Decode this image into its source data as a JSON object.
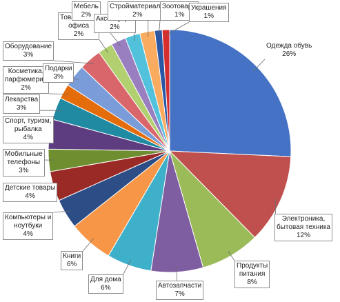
{
  "chart_data": {
    "type": "pie",
    "title": "",
    "slices": [
      {
        "label": "Одежда обувь",
        "value": 26,
        "pct": "26%",
        "color": "#4572c4"
      },
      {
        "label": "Электроника, бытовая техника",
        "value": 12,
        "pct": "12%",
        "color": "#c0504d"
      },
      {
        "label": "Продукты питания",
        "value": 8,
        "pct": "8%",
        "color": "#9bbb59"
      },
      {
        "label": "Автозапчасти",
        "value": 7,
        "pct": "7%",
        "color": "#7e5ea0"
      },
      {
        "label": "Для дома",
        "value": 6,
        "pct": "6%",
        "color": "#3fb0c9"
      },
      {
        "label": "Книги",
        "value": 6,
        "pct": "6%",
        "color": "#f79646"
      },
      {
        "label": "Компьютеры и ноутбуки",
        "value": 4,
        "pct": "4%",
        "color": "#2c4d86"
      },
      {
        "label": "Детские товары",
        "value": 4,
        "pct": "4%",
        "color": "#9a2a26"
      },
      {
        "label": "Мобильные телефоны",
        "value": 3,
        "pct": "3%",
        "color": "#6f8e2f"
      },
      {
        "label": "Спорт, туризм, рыбалка",
        "value": 4,
        "pct": "4%",
        "color": "#5d3d7f"
      },
      {
        "label": "Лекарства",
        "value": 3,
        "pct": "3%",
        "color": "#208aa3"
      },
      {
        "label": "Косметика, парфюмерия",
        "value": 2,
        "pct": "2%",
        "color": "#e46c0a"
      },
      {
        "label": "Подарки",
        "value": 3,
        "pct": "3%",
        "color": "#7a9cd8"
      },
      {
        "label": "Оборудование",
        "value": 3,
        "pct": "3%",
        "color": "#d9666a"
      },
      {
        "label": "Товары для офиса",
        "value": 2,
        "pct": "2%",
        "color": "#b2d06f"
      },
      {
        "label": "Мебель",
        "value": 2,
        "pct": "2%",
        "color": "#9a7fc0"
      },
      {
        "label": "Аксессуары",
        "value": 2,
        "pct": "2%",
        "color": "#52c1db"
      },
      {
        "label": "Стройматериалы",
        "value": 2,
        "pct": "2%",
        "color": "#f9ab60"
      },
      {
        "label": "Зоотовары",
        "value": 1,
        "pct": "1%",
        "color": "#2a56a6"
      },
      {
        "label": "Украшения",
        "value": 1,
        "pct": "1%",
        "color": "#d62e2e"
      }
    ],
    "labels": [
      {
        "text": "Одежда обувь",
        "pct": "26%"
      },
      {
        "text": "Электроника,\nбытовая техника",
        "pct": "12%"
      },
      {
        "text": "Продукты\nпитания",
        "pct": "8%"
      },
      {
        "text": "Автозапчасти",
        "pct": "7%"
      },
      {
        "text": "Для дома",
        "pct": "6%"
      },
      {
        "text": "Книги",
        "pct": "6%"
      },
      {
        "text": "Компьютеры и\nноутбуки",
        "pct": "4%"
      },
      {
        "text": "Детские товары",
        "pct": "4%"
      },
      {
        "text": "Мобильные\nтелефоны",
        "pct": "3%"
      },
      {
        "text": "Спорт, туризм,\nрыбалка",
        "pct": "4%"
      },
      {
        "text": "Лекарства",
        "pct": "3%"
      },
      {
        "text": "Косметика,\nпарфюмерия",
        "pct": "2%"
      },
      {
        "text": "Подарки",
        "pct": "3%"
      },
      {
        "text": "Оборудование",
        "pct": "3%"
      },
      {
        "text": "Товары для\nофиса",
        "pct": "2%"
      },
      {
        "text": "Мебель",
        "pct": "2%"
      },
      {
        "text": "Аксессуары",
        "pct": "2%"
      },
      {
        "text": "Стройматериалы",
        "pct": "2%"
      },
      {
        "text": "Зоотовары",
        "pct": "1%"
      },
      {
        "text": "Украшения",
        "pct": "1%"
      }
    ],
    "legend": "none"
  }
}
